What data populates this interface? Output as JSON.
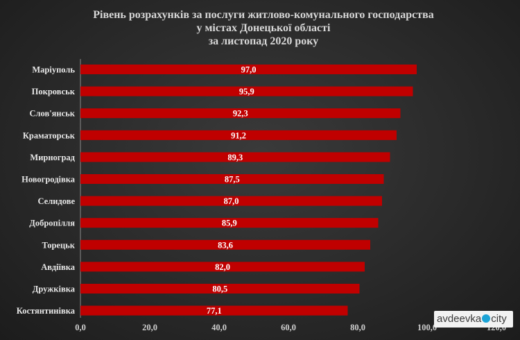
{
  "chart_data": {
    "type": "bar",
    "orientation": "horizontal",
    "title_lines": [
      "Рівень розрахунків  за послуги житлово-комунального господарства",
      "у містах Донецької області",
      "за листопад 2020 року"
    ],
    "categories": [
      "Маріуполь",
      "Покровськ",
      "Слов'янськ",
      "Краматорськ",
      "Мирноград",
      "Новогродівка",
      "Селидове",
      "Добропілля",
      "Торецьк",
      "Авдіївка",
      "Дружківка",
      "Костянтинівка"
    ],
    "values": [
      97.0,
      95.9,
      92.3,
      91.2,
      89.3,
      87.5,
      87.0,
      85.9,
      83.6,
      82.0,
      80.5,
      77.1
    ],
    "value_labels": [
      "97,0",
      "95,9",
      "92,3",
      "91,2",
      "89,3",
      "87,5",
      "87,0",
      "85,9",
      "83,6",
      "82,0",
      "80,5",
      "77,1"
    ],
    "xlim": [
      0,
      120
    ],
    "xticks": [
      0,
      20,
      40,
      60,
      80,
      100,
      120
    ],
    "xtick_labels": [
      "0,0",
      "20,0",
      "40,0",
      "60,0",
      "80,0",
      "100,0",
      "120,0"
    ],
    "xlabel": "",
    "ylabel": "",
    "grid": false,
    "legend": "none",
    "bar_color": "#c00000",
    "background_color": "#2e2e2e"
  },
  "watermark": {
    "left_text": "avdeevka",
    "right_text": "city",
    "dot_color": "#1ba3d6"
  }
}
